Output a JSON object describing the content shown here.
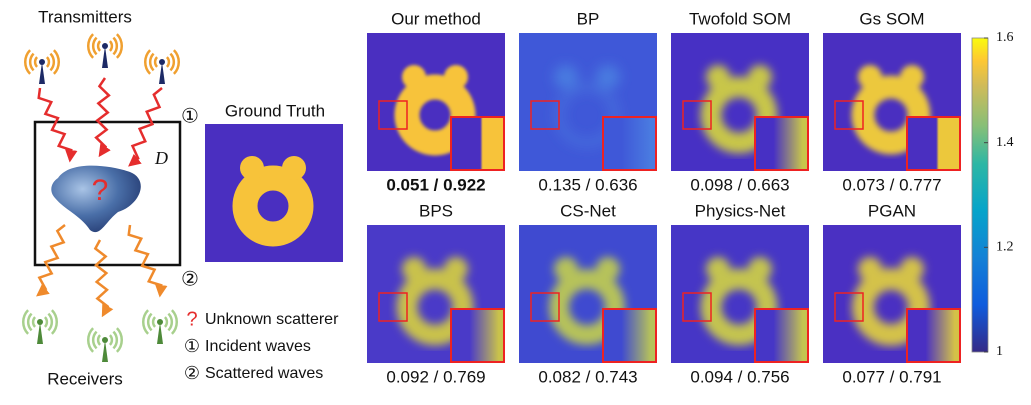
{
  "left": {
    "transmitters_label": "Transmitters",
    "receivers_label": "Receivers",
    "domain_label": "D",
    "unknown": "?",
    "step1": "①",
    "step2": "②",
    "legend": [
      {
        "symbol": "?",
        "text": "Unknown scatterer"
      },
      {
        "symbol": "①",
        "text": "Incident waves"
      },
      {
        "symbol": "②",
        "text": "Scattered waves"
      }
    ]
  },
  "ground_truth": {
    "title": "Ground Truth"
  },
  "panels": [
    {
      "title": "Our method",
      "caption": "0.051 / 0.922"
    },
    {
      "title": "BP",
      "caption": "0.135 / 0.636"
    },
    {
      "title": "Twofold SOM",
      "caption": "0.098 / 0.663"
    },
    {
      "title": "Gs SOM",
      "caption": "0.073 / 0.777"
    },
    {
      "title": "BPS",
      "caption": "0.092 / 0.769"
    },
    {
      "title": "CS-Net",
      "caption": "0.082 / 0.743"
    },
    {
      "title": "Physics-Net",
      "caption": "0.094 / 0.756"
    },
    {
      "title": "PGAN",
      "caption": "0.077 / 0.791"
    }
  ],
  "colorbar": {
    "range": [
      1,
      1.6
    ],
    "ticks": [
      1,
      1.2,
      1.4,
      1.6
    ]
  }
}
